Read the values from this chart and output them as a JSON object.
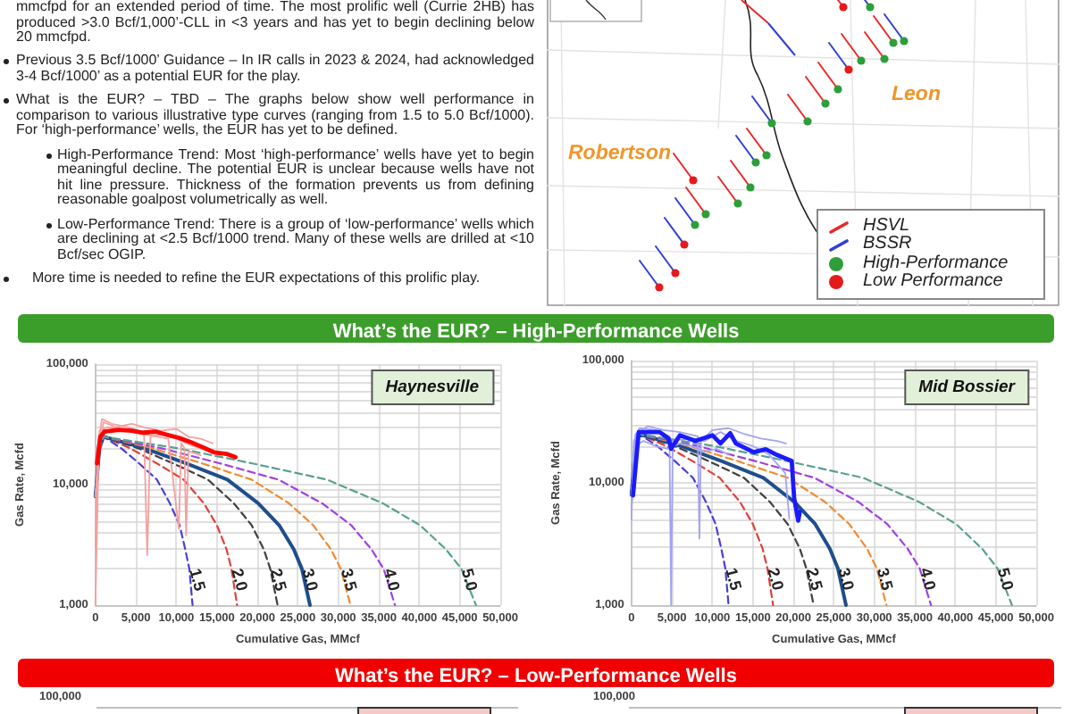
{
  "chart_data": [
    {
      "type": "other",
      "annotations": [
        "mmcfpd for an extended period of time. The most prolific well (Currie 2HB) has produced >3.0 Bcf/1,000’-CLL in <3 years and has yet to begin declining below 20 mmcfpd.",
        "Previous 3.5 Bcf/1000’ Guidance – In IR calls in 2023 & 2024, had acknowledged 3-4 Bcf/1000’ as a potential EUR for the play.",
        "What is the EUR? – TBD – The graphs below show well performance in comparison to various illustrative type curves (ranging from 1.5 to 5.0 Bcf/1000). For ‘high-performance’ wells, the EUR has yet to be defined.",
        "High-Performance Trend: Most ‘high-performance’ wells have yet to begin meaningful decline. The potential EUR is unclear because wells have not hit line pressure. Thickness of the formation prevents us from defining reasonable goalpost volumetrically as well.",
        "Low-Performance Trend: There is a group of ‘low-performance’ wells which are declining at <2.5 Bcf/1000 trend. Many of these wells are drilled at <10 Bcf/sec OGIP.",
        "More time is needed to refine the EUR expectations of this prolific play."
      ]
    },
    {
      "type": "other",
      "annotations": [
        "Leon",
        "Robertson"
      ],
      "legend": "bottom right",
      "series": [
        {
          "name": "HSVL",
          "color": "#e82a2a",
          "type": "line"
        },
        {
          "name": "BSSR",
          "color": "#2f3fd8",
          "type": "line"
        },
        {
          "name": "High-Performance",
          "color": "#2e9e3a",
          "type": "scatter"
        },
        {
          "name": "Low Performance",
          "color": "#e41b1b",
          "type": "scatter"
        }
      ]
    },
    {
      "type": "other",
      "title": "What’s the EUR? – High-Performance Wells"
    },
    {
      "type": "line",
      "title": "Haynesville",
      "xlabel": "Cumulative Gas, MMcf",
      "ylabel": "Gas Rate, Mcfd",
      "log": true,
      "grid": true,
      "xlim": [
        0,
        50000
      ],
      "xticks": [
        0,
        {
          "value": 5000,
          "label": "5,000"
        },
        {
          "value": 10000,
          "label": "10,000"
        },
        {
          "value": 15000,
          "label": "15,000"
        },
        {
          "value": 20000,
          "label": "20,000"
        },
        {
          "value": 25000,
          "label": "25,000"
        },
        {
          "value": 30000,
          "label": "30,000"
        },
        {
          "value": 35000,
          "label": "35,000"
        },
        {
          "value": 40000,
          "label": "40,000"
        },
        {
          "value": 45000,
          "label": "45,000"
        },
        {
          "value": 50000,
          "label": "50,000"
        }
      ],
      "ylim": [
        1000,
        100000
      ],
      "yticks": [
        {
          "value": 1000,
          "label": "1,000"
        },
        {
          "value": 2000,
          "label": null
        },
        {
          "value": 3000,
          "label": null
        },
        {
          "value": 4000,
          "label": null
        },
        {
          "value": 5000,
          "label": null
        },
        {
          "value": 6000,
          "label": null
        },
        {
          "value": 7000,
          "label": null
        },
        {
          "value": 8000,
          "label": null
        },
        {
          "value": 9000,
          "label": null
        },
        {
          "value": 10000,
          "label": "10,000"
        },
        {
          "value": 20000,
          "label": null
        },
        {
          "value": 30000,
          "label": null
        },
        {
          "value": 40000,
          "label": null
        },
        {
          "value": 50000,
          "label": null
        },
        {
          "value": 60000,
          "label": null
        },
        {
          "value": 70000,
          "label": null
        },
        {
          "value": 80000,
          "label": null
        },
        {
          "value": 90000,
          "label": null
        },
        {
          "value": 100000,
          "label": "100,000"
        }
      ],
      "series": [
        {
          "name": "1.5",
          "color": "#4a3fd6",
          "line_style": "dashed",
          "x": [
            0,
            500,
            1000,
            3200,
            5400,
            7600,
            9200,
            10400,
            11100,
            11600,
            12000
          ],
          "values": [
            8000,
            20000,
            25000,
            20000,
            15000,
            11000,
            7000,
            4600,
            2900,
            2000,
            1000
          ]
        },
        {
          "name": "2.0",
          "color": "#e0413a",
          "line_style": "dashed",
          "x": [
            0,
            500,
            1000,
            4300,
            7600,
            10900,
            13400,
            15000,
            16200,
            16800,
            17500
          ],
          "values": [
            8000,
            20000,
            25000,
            20000,
            15000,
            11000,
            7000,
            4600,
            2900,
            2000,
            1000
          ]
        },
        {
          "name": "2.5",
          "color": "#404040",
          "line_style": "dashed",
          "x": [
            0,
            500,
            1000,
            5300,
            9600,
            13900,
            17100,
            19300,
            20800,
            21600,
            22500
          ],
          "values": [
            8000,
            20000,
            25000,
            20000,
            15000,
            11000,
            7000,
            4600,
            2900,
            2000,
            1000
          ]
        },
        {
          "name": "3.0",
          "color": "#1f4e8c",
          "line_style": "solid",
          "x": [
            0,
            500,
            1000,
            6100,
            11200,
            16300,
            20100,
            22700,
            24500,
            25500,
            26500
          ],
          "values": [
            8000,
            20000,
            25000,
            20000,
            15000,
            11000,
            7000,
            4600,
            2900,
            2000,
            1000
          ]
        },
        {
          "name": "3.5",
          "color": "#f08a30",
          "line_style": "dashed",
          "x": [
            0,
            500,
            1000,
            7100,
            13200,
            19300,
            23900,
            26900,
            29100,
            30300,
            31500
          ],
          "values": [
            8000,
            20000,
            25000,
            20000,
            15000,
            11000,
            7000,
            4600,
            2900,
            2000,
            1000
          ]
        },
        {
          "name": "4.0",
          "color": "#a040e0",
          "line_style": "dashed",
          "x": [
            0,
            500,
            1000,
            8200,
            15400,
            22600,
            28000,
            31600,
            34100,
            35600,
            37000
          ],
          "values": [
            8000,
            20000,
            25000,
            20000,
            15000,
            11000,
            7000,
            4600,
            2900,
            2000,
            1000
          ]
        },
        {
          "name": "5.0",
          "color": "#5aa090",
          "line_style": "dashed",
          "x": [
            0,
            500,
            1000,
            10200,
            19400,
            28600,
            35500,
            40100,
            43300,
            45200,
            47000
          ],
          "values": [
            8000,
            20000,
            25000,
            20000,
            15000,
            11000,
            7000,
            4600,
            2900,
            2000,
            1000
          ]
        },
        {
          "color": "#f4a0a0",
          "x": [
            0,
            300,
            800,
            2000,
            4000,
            6000,
            6400,
            6800,
            8000,
            10000,
            12000,
            14000,
            15500
          ],
          "values": [
            3000,
            20000,
            35000,
            32000,
            30000,
            27000,
            2600,
            25000,
            26000,
            24000,
            21000,
            19000,
            17500
          ]
        },
        {
          "color": "#f4a0a0",
          "x": [
            0,
            500,
            1500,
            3000,
            5000,
            7000,
            9000,
            10300,
            10600,
            11000,
            11200,
            11500,
            13000
          ],
          "values": [
            8000,
            28000,
            30000,
            29000,
            27000,
            25500,
            24000,
            4300,
            22000,
            20000,
            3800,
            19000,
            17500
          ]
        },
        {
          "color": "#f4a0a0",
          "x": [
            0,
            400,
            1000,
            2500,
            4500,
            6000,
            8000,
            10000,
            11500,
            13000,
            14500
          ],
          "values": [
            1000,
            18000,
            33000,
            30000,
            32000,
            30000,
            28000,
            29000,
            25000,
            24000,
            22000
          ]
        },
        {
          "color": "#ff0000",
          "x": [
            200,
            600,
            1100,
            2900,
            4500,
            5900,
            7500,
            8800,
            10300,
            11800,
            13200,
            14700,
            16200,
            17300
          ],
          "values": [
            15000,
            25000,
            27500,
            28500,
            28000,
            27000,
            27500,
            26000,
            24500,
            22500,
            20500,
            18500,
            18000,
            16900
          ]
        }
      ]
    },
    {
      "type": "line",
      "title": "Mid Bossier",
      "xlabel": "Cumulative Gas, MMcf",
      "ylabel": "Gas Rate, Mcfd",
      "log": true,
      "grid": true,
      "xlim": [
        0,
        50000
      ],
      "xticks": [
        0,
        {
          "value": 5000,
          "label": "5,000"
        },
        {
          "value": 10000,
          "label": "10,000"
        },
        {
          "value": 15000,
          "label": "15,000"
        },
        {
          "value": 20000,
          "label": "20,000"
        },
        {
          "value": 25000,
          "label": "25,000"
        },
        {
          "value": 30000,
          "label": "30,000"
        },
        {
          "value": 35000,
          "label": "35,000"
        },
        {
          "value": 40000,
          "label": "40,000"
        },
        {
          "value": 45000,
          "label": "45,000"
        },
        {
          "value": 50000,
          "label": "50,000"
        }
      ],
      "ylim": [
        1000,
        100000
      ],
      "yticks": [
        {
          "value": 1000,
          "label": "1,000"
        },
        {
          "value": 2000,
          "label": null
        },
        {
          "value": 3000,
          "label": null
        },
        {
          "value": 4000,
          "label": null
        },
        {
          "value": 5000,
          "label": null
        },
        {
          "value": 6000,
          "label": null
        },
        {
          "value": 7000,
          "label": null
        },
        {
          "value": 8000,
          "label": null
        },
        {
          "value": 9000,
          "label": null
        },
        {
          "value": 10000,
          "label": "10,000"
        },
        {
          "value": 20000,
          "label": null
        },
        {
          "value": 30000,
          "label": null
        },
        {
          "value": 40000,
          "label": null
        },
        {
          "value": 50000,
          "label": null
        },
        {
          "value": 60000,
          "label": null
        },
        {
          "value": 70000,
          "label": null
        },
        {
          "value": 80000,
          "label": null
        },
        {
          "value": 90000,
          "label": null
        },
        {
          "value": 100000,
          "label": "100,000"
        }
      ],
      "series": [
        {
          "name": "1.5",
          "color": "#4a3fd6",
          "line_style": "dashed",
          "x": [
            0,
            500,
            1000,
            3200,
            5400,
            7600,
            9200,
            10400,
            11100,
            11600,
            12000
          ],
          "values": [
            8000,
            20000,
            25000,
            20000,
            15000,
            11000,
            7000,
            4600,
            2900,
            2000,
            1000
          ]
        },
        {
          "name": "2.0",
          "color": "#e0413a",
          "line_style": "dashed",
          "x": [
            0,
            500,
            1000,
            4300,
            7600,
            10900,
            13400,
            15000,
            16200,
            16800,
            17500
          ],
          "values": [
            8000,
            20000,
            25000,
            20000,
            15000,
            11000,
            7000,
            4600,
            2900,
            2000,
            1000
          ]
        },
        {
          "name": "2.5",
          "color": "#404040",
          "line_style": "dashed",
          "x": [
            0,
            500,
            1000,
            5300,
            9600,
            13900,
            17100,
            19300,
            20800,
            21600,
            22500
          ],
          "values": [
            8000,
            20000,
            25000,
            20000,
            15000,
            11000,
            7000,
            4600,
            2900,
            2000,
            1000
          ]
        },
        {
          "name": "3.0",
          "color": "#1f4e8c",
          "line_style": "solid",
          "x": [
            0,
            500,
            1000,
            6100,
            11200,
            16300,
            20100,
            22700,
            24500,
            25500,
            26500
          ],
          "values": [
            8000,
            20000,
            25000,
            20000,
            15000,
            11000,
            7000,
            4600,
            2900,
            2000,
            1000
          ]
        },
        {
          "name": "3.5",
          "color": "#f08a30",
          "line_style": "dashed",
          "x": [
            0,
            500,
            1000,
            7100,
            13200,
            19300,
            23900,
            26900,
            29100,
            30300,
            31500
          ],
          "values": [
            8000,
            20000,
            25000,
            20000,
            15000,
            11000,
            7000,
            4600,
            2900,
            2000,
            1000
          ]
        },
        {
          "name": "4.0",
          "color": "#a040e0",
          "line_style": "dashed",
          "x": [
            0,
            500,
            1000,
            8200,
            15400,
            22600,
            28000,
            31600,
            34100,
            35600,
            37000
          ],
          "values": [
            8000,
            20000,
            25000,
            20000,
            15000,
            11000,
            7000,
            4600,
            2900,
            2000,
            1000
          ]
        },
        {
          "name": "5.0",
          "color": "#5aa090",
          "line_style": "dashed",
          "x": [
            0,
            500,
            1000,
            10200,
            19400,
            28600,
            35500,
            40100,
            43300,
            45200,
            47000
          ],
          "values": [
            8000,
            20000,
            25000,
            20000,
            15000,
            11000,
            7000,
            4600,
            2900,
            2000,
            1000
          ]
        },
        {
          "color": "#a3a3f0",
          "x": [
            0,
            300,
            1000,
            3000,
            4700,
            4900,
            5100,
            7000,
            9000,
            11000,
            13000,
            15000,
            17000,
            19000,
            19500
          ],
          "values": [
            5000,
            22000,
            28000,
            27000,
            24000,
            1000,
            22000,
            23000,
            22000,
            26000,
            22000,
            20000,
            17000,
            12000,
            5100
          ]
        },
        {
          "color": "#a3a3f0",
          "x": [
            0,
            500,
            2000,
            4000,
            6000,
            8200,
            8400,
            8600,
            10000,
            12000,
            14000,
            16000,
            18000,
            19100
          ],
          "values": [
            8000,
            25000,
            29000,
            27000,
            26000,
            24000,
            3500,
            22000,
            27000,
            28000,
            25000,
            23000,
            22000,
            21000
          ]
        },
        {
          "color": "#a3a3f0",
          "x": [
            0,
            500,
            1500,
            3000,
            4500,
            6000,
            7500,
            9000,
            10500,
            12000
          ],
          "values": [
            6000,
            20000,
            22000,
            20000,
            19000,
            21000,
            20000,
            18000,
            19000,
            17000
          ]
        },
        {
          "color": "#1a1aff",
          "x": [
            200,
            900,
            3500,
            4600,
            4900,
            6000,
            7900,
            10000,
            11000,
            12200,
            12900,
            15100,
            16600,
            18000,
            19800,
            20100,
            20600,
            20800
          ],
          "values": [
            7900,
            26000,
            26000,
            23000,
            19000,
            24500,
            22000,
            24500,
            21000,
            25500,
            21000,
            17800,
            18800,
            16900,
            15100,
            7500,
            4900,
            5800
          ]
        }
      ]
    },
    {
      "type": "other",
      "title": "What’s the EUR? – Low-Performance Wells"
    },
    {
      "type": "other",
      "annotations": [
        "100,000"
      ]
    },
    {
      "type": "other",
      "annotations": [
        "100,000"
      ]
    }
  ]
}
